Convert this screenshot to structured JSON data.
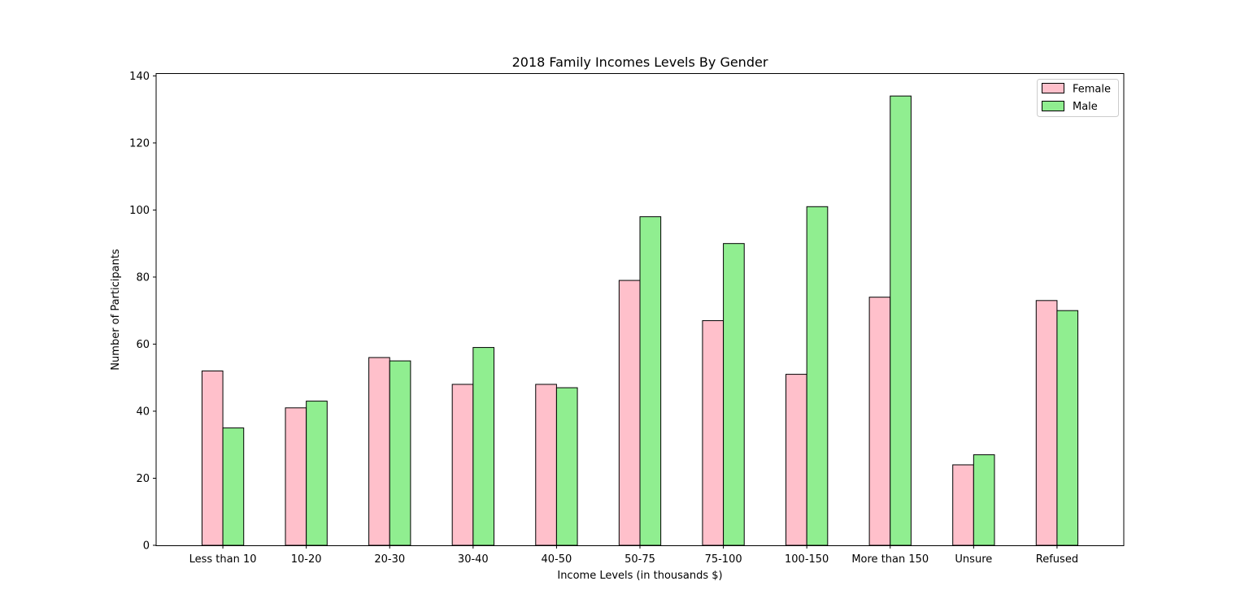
{
  "chart_data": {
    "type": "bar",
    "title": "2018 Family Incomes Levels By Gender",
    "xlabel": "Income Levels (in thousands $)",
    "ylabel": "Number of Participants",
    "categories": [
      "Less than 10",
      "10-20",
      "20-30",
      "30-40",
      "40-50",
      "50-75",
      "75-100",
      "100-150",
      "More than 150",
      "Unsure",
      "Refused"
    ],
    "series": [
      {
        "name": "Female",
        "color": "#ffc0cb",
        "values": [
          52,
          41,
          56,
          48,
          48,
          79,
          67,
          51,
          74,
          24,
          73
        ]
      },
      {
        "name": "Male",
        "color": "#90ee90",
        "values": [
          35,
          43,
          55,
          59,
          47,
          98,
          90,
          101,
          134,
          27,
          70
        ]
      }
    ],
    "ylim": [
      0,
      140.7
    ],
    "yticks": [
      0,
      20,
      40,
      60,
      80,
      100,
      120,
      140
    ],
    "grid": false,
    "legend_position": "top-right"
  }
}
